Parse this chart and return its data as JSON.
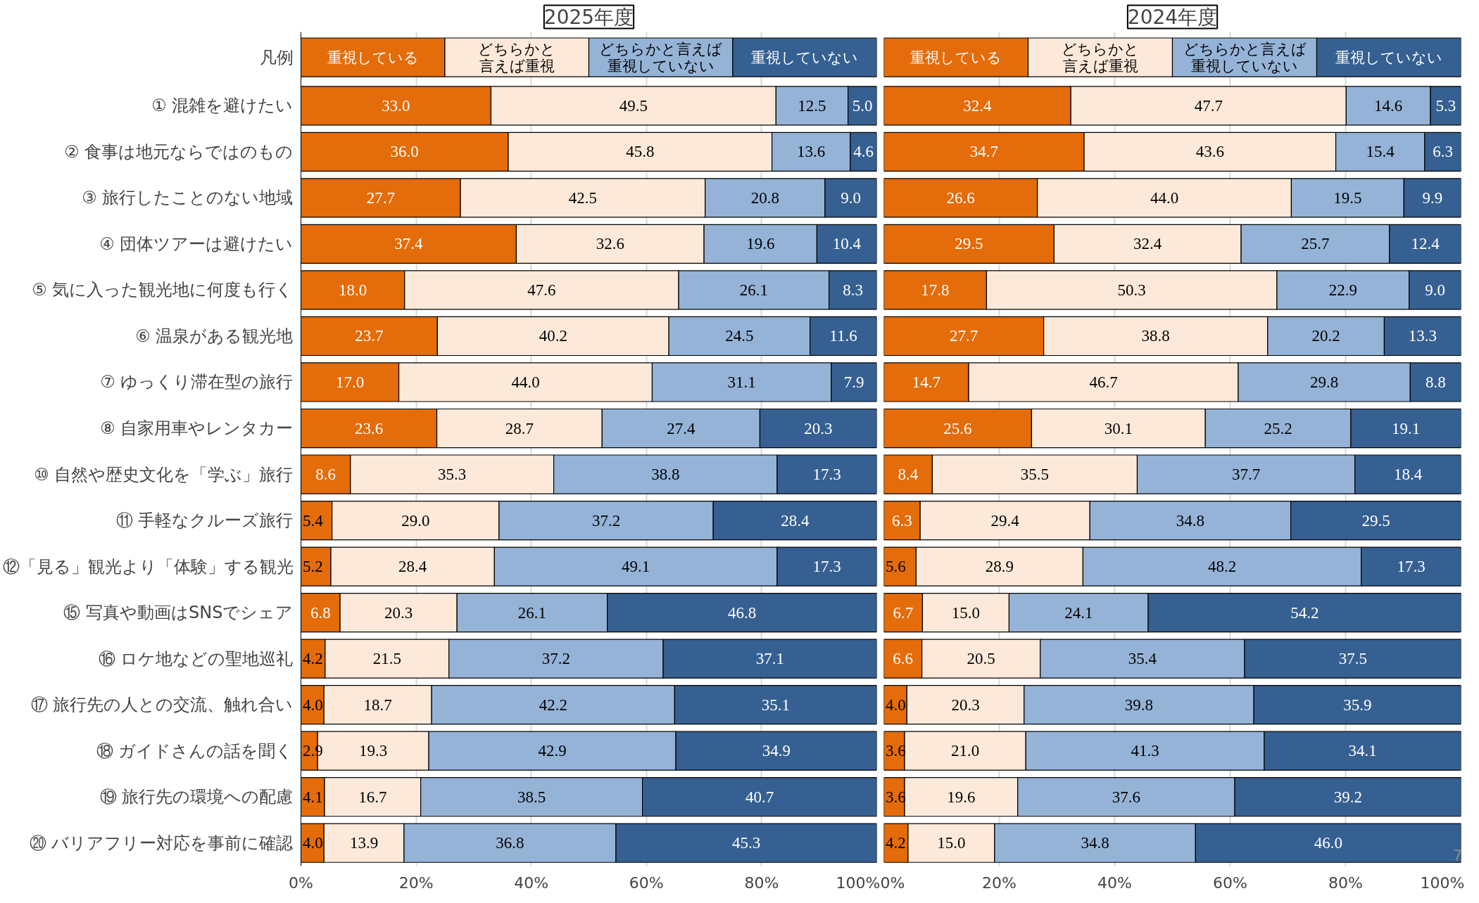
{
  "chart_data": [
    {
      "type": "bar",
      "title": "2025年度",
      "legend_title": "凡例",
      "orientation": "horizontal",
      "stacked": true,
      "legend": "top",
      "grid": "x",
      "categories": [
        "① 混雑を避けたい",
        "② 食事は地元ならではのもの",
        "③ 旅行したことのない地域",
        "④ 団体ツアーは避けたい",
        "⑤ 気に入った観光地に何度も行く",
        "⑥ 温泉がある観光地",
        "⑦ ゆっくり滞在型の旅行",
        "⑧ 自家用車やレンタカー",
        "⑩ 自然や歴史文化を「学ぶ」旅行",
        "⑪ 手軽なクルーズ旅行",
        "⑫「見る」観光より「体験」する観光",
        "⑮ 写真や動画はSNSでシェア",
        "⑯ ロケ地などの聖地巡礼",
        "⑰ 旅行先の人との交流、触れ合い",
        "⑱ ガイドさんの話を聞く",
        "⑲ 旅行先の環境への配慮",
        "⑳ バリアフリー対応を事前に確認"
      ],
      "xlim": [
        0,
        100
      ],
      "xticks": [
        {
          "value": 0,
          "label": "0%"
        },
        {
          "value": 20,
          "label": "20%"
        },
        {
          "value": 40,
          "label": "40%"
        },
        {
          "value": 60,
          "label": "60%"
        },
        {
          "value": 80,
          "label": "80%"
        },
        {
          "value": 100,
          "label": "100%"
        }
      ],
      "series": [
        {
          "name": "重視している",
          "color": "#e46c0a",
          "values": [
            33.0,
            36.0,
            27.7,
            37.4,
            18.0,
            23.7,
            17.0,
            23.6,
            8.6,
            5.4,
            5.2,
            6.8,
            4.2,
            4.0,
            2.9,
            4.1,
            4.0
          ],
          "value_labels": [
            "33.0",
            "36.0",
            "27.7",
            "37.4",
            "18.0",
            "23.7",
            "17.0",
            "23.6",
            "8.6",
            "5.4",
            "5.2",
            "6.8",
            "4.2",
            "4.0",
            "2.9",
            "4.1",
            "4.0"
          ]
        },
        {
          "name": "どちらかと言えば重視",
          "color": "#fde9d9",
          "values": [
            49.5,
            45.8,
            42.5,
            32.6,
            47.6,
            40.2,
            44.0,
            28.7,
            35.3,
            29.0,
            28.4,
            20.3,
            21.5,
            18.7,
            19.3,
            16.7,
            13.9
          ],
          "value_labels": [
            "49.5",
            "45.8",
            "42.5",
            "32.6",
            "47.6",
            "40.2",
            "44.0",
            "28.7",
            "35.3",
            "29.0",
            "28.4",
            "20.3",
            "21.5",
            "18.7",
            "19.3",
            "16.7",
            "13.9"
          ]
        },
        {
          "name": "どちらかと言えば重視していない",
          "color": "#95b3d7",
          "values": [
            12.5,
            13.6,
            20.8,
            19.6,
            26.1,
            24.5,
            31.1,
            27.4,
            38.8,
            37.2,
            49.1,
            26.1,
            37.2,
            42.2,
            42.9,
            38.5,
            36.8
          ],
          "value_labels": [
            "12.5",
            "13.6",
            "20.8",
            "19.6",
            "26.1",
            "24.5",
            "31.1",
            "27.4",
            "38.8",
            "37.2",
            "49.1",
            "26.1",
            "37.2",
            "42.2",
            "42.9",
            "38.5",
            "36.8"
          ]
        },
        {
          "name": "重視していない",
          "color": "#366092",
          "values": [
            5.0,
            4.6,
            9.0,
            10.4,
            8.3,
            11.6,
            7.9,
            20.3,
            17.3,
            28.4,
            17.3,
            46.8,
            37.1,
            35.1,
            34.9,
            40.7,
            45.3
          ],
          "value_labels": [
            "5.0",
            "4.6",
            "9.0",
            "10.4",
            "8.3",
            "11.6",
            "7.9",
            "20.3",
            "17.3",
            "28.4",
            "17.3",
            "46.8",
            "37.1",
            "35.1",
            "34.9",
            "40.7",
            "45.3"
          ]
        }
      ]
    },
    {
      "type": "bar",
      "title": "2024年度",
      "orientation": "horizontal",
      "stacked": true,
      "legend": "top",
      "grid": "x",
      "tick_labels": "x",
      "annotations": [
        "7"
      ],
      "categories": [
        null,
        null,
        null,
        null,
        null,
        null,
        null,
        null,
        null,
        null,
        null,
        null,
        null,
        null,
        null,
        null,
        null
      ],
      "xlim": [
        0,
        100
      ],
      "xticks": [
        {
          "value": 0,
          "label": "0%"
        },
        {
          "value": 20,
          "label": "20%"
        },
        {
          "value": 40,
          "label": "40%"
        },
        {
          "value": 60,
          "label": "60%"
        },
        {
          "value": 80,
          "label": "80%"
        },
        {
          "value": 100,
          "label": "100%"
        }
      ],
      "series": [
        {
          "name": "重視している",
          "color": "#e46c0a",
          "values": [
            32.4,
            34.7,
            26.6,
            29.5,
            17.8,
            27.7,
            14.7,
            25.6,
            8.4,
            6.3,
            5.6,
            6.7,
            6.6,
            4.0,
            3.6,
            3.6,
            4.2
          ],
          "value_labels": [
            "32.4",
            "34.7",
            "26.6",
            "29.5",
            "17.8",
            "27.7",
            "14.7",
            "25.6",
            "8.4",
            "6.3",
            "5.6",
            "6.7",
            "6.6",
            "4.0",
            "3.6",
            "3.6",
            "4.2"
          ]
        },
        {
          "name": "どちらかと言えば重視",
          "color": "#fde9d9",
          "values": [
            47.7,
            43.6,
            44.0,
            32.4,
            50.3,
            38.8,
            46.7,
            30.1,
            35.5,
            29.4,
            28.9,
            15.0,
            20.5,
            20.3,
            21.0,
            19.6,
            15.0
          ],
          "value_labels": [
            "47.7",
            "43.6",
            "44.0",
            "32.4",
            "50.3",
            "38.8",
            "46.7",
            "30.1",
            "35.5",
            "29.4",
            "28.9",
            "15.0",
            "20.5",
            "20.3",
            "21.0",
            "19.6",
            "15.0"
          ]
        },
        {
          "name": "どちらかと言えば重視していない",
          "color": "#95b3d7",
          "values": [
            14.6,
            15.4,
            19.5,
            25.7,
            22.9,
            20.2,
            29.8,
            25.2,
            37.7,
            34.8,
            48.2,
            24.1,
            35.4,
            39.8,
            41.3,
            37.6,
            34.8
          ],
          "value_labels": [
            "14.6",
            "15.4",
            "19.5",
            "25.7",
            "22.9",
            "20.2",
            "29.8",
            "25.2",
            "37.7",
            "34.8",
            "48.2",
            "24.1",
            "35.4",
            "39.8",
            "41.3",
            "37.6",
            "34.8"
          ]
        },
        {
          "name": "重視していない",
          "color": "#366092",
          "values": [
            5.3,
            6.3,
            9.9,
            12.4,
            9.0,
            13.3,
            8.8,
            19.1,
            18.4,
            29.5,
            17.3,
            54.2,
            37.5,
            35.9,
            34.1,
            39.2,
            46.0
          ],
          "value_labels": [
            "5.3",
            "6.3",
            "9.9",
            "12.4",
            "9.0",
            "13.3",
            "8.8",
            "19.1",
            "18.4",
            "29.5",
            "17.3",
            "54.2",
            "37.5",
            "35.9",
            "34.1",
            "39.2",
            "46.0"
          ]
        }
      ]
    }
  ]
}
